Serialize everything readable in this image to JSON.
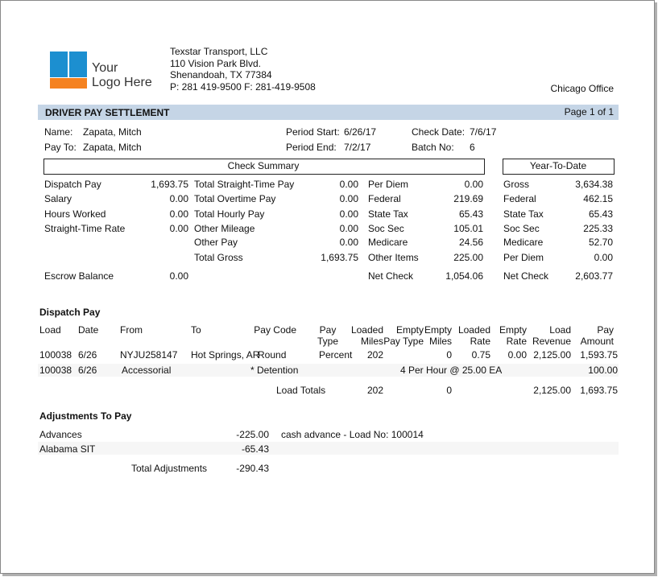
{
  "logo": {
    "line1": "Your",
    "line2": "Logo Here"
  },
  "company": {
    "name": "Texstar Transport, LLC",
    "address": "110 Vision Park Blvd.",
    "city": "Shenandoah, TX  77384",
    "phones": "P: 281 419-9500  F: 281-419-9508"
  },
  "office": "Chicago Office",
  "header": {
    "title": "DRIVER PAY SETTLEMENT",
    "page": "Page 1 of 1"
  },
  "info": {
    "name_label": "Name:",
    "name": "Zapata, Mitch",
    "pay_to_label": "Pay To:",
    "pay_to": "Zapata, Mitch",
    "period_start_label": "Period Start:",
    "period_start": "6/26/17",
    "period_end_label": "Period End:",
    "period_end": "7/2/17",
    "check_date_label": "Check Date:",
    "check_date": "7/6/17",
    "batch_label": "Batch No:",
    "batch": "6"
  },
  "check_summary": {
    "title": "Check Summary",
    "columns": [
      [
        {
          "label": "Dispatch Pay",
          "value": "1,693.75"
        },
        {
          "label": "Salary",
          "value": "0.00"
        },
        {
          "label": "Hours Worked",
          "value": "0.00"
        },
        {
          "label": "Straight-Time Rate",
          "value": "0.00"
        },
        {
          "label": "Escrow Balance",
          "value": "0.00"
        }
      ],
      [
        {
          "label": "Total Straight-Time Pay",
          "value": "0.00"
        },
        {
          "label": "Total Overtime Pay",
          "value": "0.00"
        },
        {
          "label": "Total Hourly Pay",
          "value": "0.00"
        },
        {
          "label": "Other Mileage",
          "value": "0.00"
        },
        {
          "label": "Other Pay",
          "value": "0.00"
        },
        {
          "label": "Total Gross",
          "value": "1,693.75"
        }
      ],
      [
        {
          "label": "Per Diem",
          "value": "0.00"
        },
        {
          "label": "Federal",
          "value": "219.69"
        },
        {
          "label": "State Tax",
          "value": "65.43"
        },
        {
          "label": "Soc Sec",
          "value": "105.01"
        },
        {
          "label": "Medicare",
          "value": "24.56"
        },
        {
          "label": "Other Items",
          "value": "225.00"
        },
        {
          "label": "Net Check",
          "value": "1,054.06"
        }
      ]
    ]
  },
  "ytd": {
    "title": "Year-To-Date",
    "rows": [
      {
        "label": "Gross",
        "value": "3,634.38"
      },
      {
        "label": "Federal",
        "value": "462.15"
      },
      {
        "label": "State Tax",
        "value": "65.43"
      },
      {
        "label": "Soc Sec",
        "value": "225.33"
      },
      {
        "label": "Medicare",
        "value": "52.70"
      },
      {
        "label": "Per Diem",
        "value": "0.00"
      },
      {
        "label": "Net Check",
        "value": "2,603.77"
      }
    ]
  },
  "dispatch": {
    "title": "Dispatch Pay",
    "columns": {
      "load": [
        "Load"
      ],
      "date": [
        "Date"
      ],
      "from": [
        "From"
      ],
      "to": [
        "To"
      ],
      "pay_code": [
        "Pay Code"
      ],
      "pay_type": [
        "Pay",
        "Type"
      ],
      "loaded_miles": [
        "Loaded",
        "Miles"
      ],
      "empty_pay_type": [
        "Empty",
        "Pay Type"
      ],
      "empty_miles": [
        "Empty",
        "Miles"
      ],
      "loaded_rate": [
        "Loaded",
        "Rate"
      ],
      "empty_rate": [
        "Empty",
        "Rate"
      ],
      "load_revenue": [
        "Load",
        "Revenue"
      ],
      "pay_amount": [
        "Pay",
        "Amount"
      ]
    },
    "rows": [
      {
        "load": "100038",
        "date": "6/26",
        "from": "NYJU258147",
        "to": "Hot Springs, AR",
        "pay_code": "Round",
        "pay_type": "Percent",
        "loaded_miles": "202",
        "empty_miles": "0",
        "loaded_rate": "0.75",
        "empty_rate": "0.00",
        "load_revenue": "2,125.00",
        "pay_amount": "1,593.75"
      },
      {
        "load": "100038",
        "date": "6/26",
        "from": "Accessorial",
        "pay_code": "* Detention",
        "description": "4 Per Hour @ 25.00 EA",
        "pay_amount": "100.00"
      }
    ],
    "totals": {
      "label": "Load Totals",
      "loaded_miles": "202",
      "empty_miles": "0",
      "load_revenue": "2,125.00",
      "pay_amount": "1,693.75"
    }
  },
  "adjustments": {
    "title": "Adjustments To Pay",
    "rows": [
      {
        "label": "Advances",
        "amount": "-225.00",
        "note": "cash advance - Load No: 100014"
      },
      {
        "label": "Alabama SIT",
        "amount": "-65.43"
      }
    ],
    "total_label": "Total Adjustments",
    "total": "-290.43"
  }
}
